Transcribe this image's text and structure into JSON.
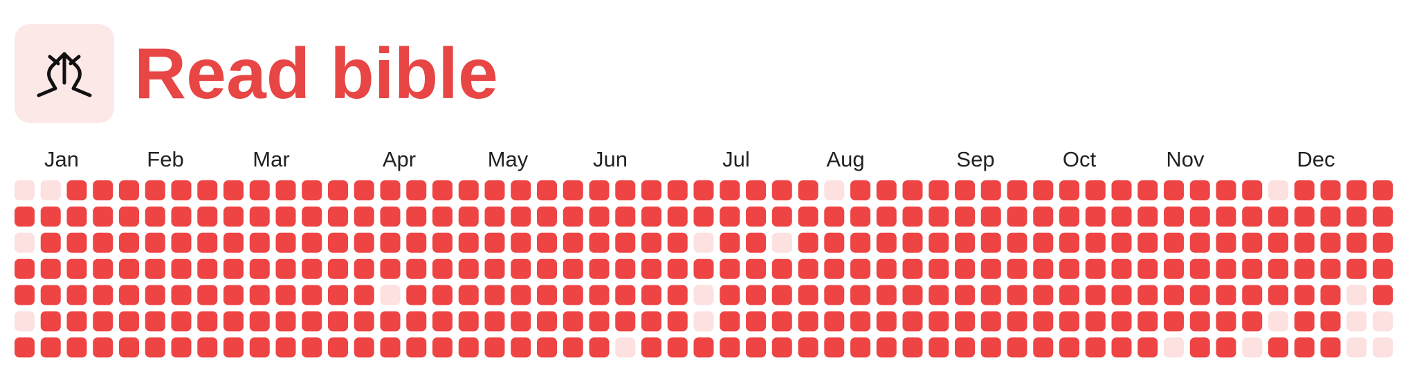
{
  "header": {
    "title": "Read bible"
  },
  "months": [
    "Jan",
    "Feb",
    "Mar",
    "Apr",
    "May",
    "Jun",
    "Jul",
    "Aug",
    "Sep",
    "Oct",
    "Nov",
    "Dec"
  ],
  "grid": [
    [
      0,
      0,
      1,
      1,
      1,
      1,
      1,
      1,
      1,
      1,
      1,
      1,
      1,
      1,
      1,
      1,
      1,
      1,
      1,
      1,
      1,
      1,
      1,
      1,
      1,
      1,
      1,
      1,
      1,
      1,
      1,
      0,
      1,
      1,
      1,
      1,
      1,
      1,
      1,
      1,
      1,
      1,
      1,
      1,
      1,
      1,
      1,
      1,
      0,
      1,
      1,
      1,
      1
    ],
    [
      1,
      1,
      1,
      1,
      1,
      1,
      1,
      1,
      1,
      1,
      1,
      1,
      1,
      1,
      1,
      1,
      1,
      1,
      1,
      1,
      1,
      1,
      1,
      1,
      1,
      1,
      1,
      1,
      1,
      1,
      1,
      1,
      1,
      1,
      1,
      1,
      1,
      1,
      1,
      1,
      1,
      1,
      1,
      1,
      1,
      1,
      1,
      1,
      1,
      1,
      1,
      1,
      1
    ],
    [
      0,
      1,
      1,
      1,
      1,
      1,
      1,
      1,
      1,
      1,
      1,
      1,
      1,
      1,
      1,
      1,
      1,
      1,
      1,
      1,
      1,
      1,
      1,
      1,
      1,
      1,
      0,
      1,
      1,
      0,
      1,
      1,
      1,
      1,
      1,
      1,
      1,
      1,
      1,
      1,
      1,
      1,
      1,
      1,
      1,
      1,
      1,
      1,
      1,
      1,
      1,
      1,
      1
    ],
    [
      1,
      1,
      1,
      1,
      1,
      1,
      1,
      1,
      1,
      1,
      1,
      1,
      1,
      1,
      1,
      1,
      1,
      1,
      1,
      1,
      1,
      1,
      1,
      1,
      1,
      1,
      1,
      1,
      1,
      1,
      1,
      1,
      1,
      1,
      1,
      1,
      1,
      1,
      1,
      1,
      1,
      1,
      1,
      1,
      1,
      1,
      1,
      1,
      1,
      1,
      1,
      1,
      1
    ],
    [
      1,
      1,
      1,
      1,
      1,
      1,
      1,
      1,
      1,
      1,
      1,
      1,
      1,
      1,
      0,
      1,
      1,
      1,
      1,
      1,
      1,
      1,
      1,
      1,
      1,
      1,
      0,
      1,
      1,
      1,
      1,
      1,
      1,
      1,
      1,
      1,
      1,
      1,
      1,
      1,
      1,
      1,
      1,
      1,
      1,
      1,
      1,
      1,
      1,
      1,
      1,
      0,
      1
    ],
    [
      0,
      1,
      1,
      1,
      1,
      1,
      1,
      1,
      1,
      1,
      1,
      1,
      1,
      1,
      1,
      1,
      1,
      1,
      1,
      1,
      1,
      1,
      1,
      1,
      1,
      1,
      0,
      1,
      1,
      1,
      1,
      1,
      1,
      1,
      1,
      1,
      1,
      1,
      1,
      1,
      1,
      1,
      1,
      1,
      1,
      1,
      1,
      1,
      0,
      1,
      1,
      0,
      0
    ],
    [
      1,
      1,
      1,
      1,
      1,
      1,
      1,
      1,
      1,
      1,
      1,
      1,
      1,
      1,
      1,
      1,
      1,
      1,
      1,
      1,
      1,
      1,
      1,
      0,
      1,
      1,
      1,
      1,
      1,
      1,
      1,
      1,
      1,
      1,
      1,
      1,
      1,
      1,
      1,
      1,
      1,
      1,
      1,
      1,
      0,
      1,
      1,
      0,
      1,
      1,
      1,
      0,
      0
    ]
  ]
}
